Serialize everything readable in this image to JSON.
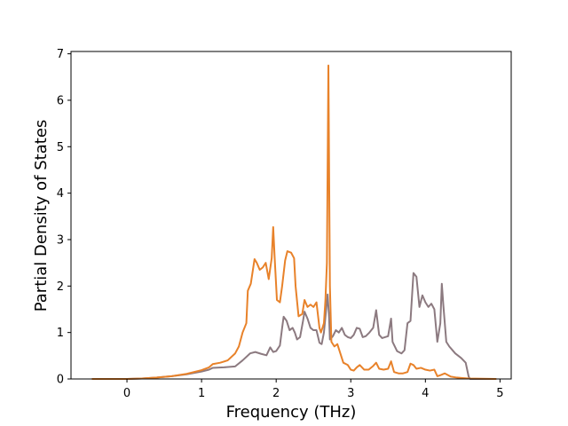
{
  "chart_data": {
    "type": "line",
    "title": "",
    "xlabel": "Frequency (THz)",
    "ylabel": "Partial Density of States",
    "xlim": [
      -0.75,
      5.15
    ],
    "ylim": [
      0,
      7.05
    ],
    "xticks": [
      0,
      1,
      2,
      3,
      4,
      5
    ],
    "yticks": [
      0,
      1,
      2,
      3,
      4,
      5,
      6,
      7
    ],
    "grid": false,
    "legend": "none",
    "series": [
      {
        "color": "#8c7a80",
        "points": [
          [
            -0.47,
            0.0
          ],
          [
            0.0,
            0.0
          ],
          [
            0.2,
            0.01
          ],
          [
            0.4,
            0.03
          ],
          [
            0.6,
            0.06
          ],
          [
            0.8,
            0.1
          ],
          [
            1.0,
            0.16
          ],
          [
            1.1,
            0.2
          ],
          [
            1.15,
            0.24
          ],
          [
            1.3,
            0.25
          ],
          [
            1.45,
            0.27
          ],
          [
            1.55,
            0.4
          ],
          [
            1.65,
            0.55
          ],
          [
            1.72,
            0.58
          ],
          [
            1.8,
            0.54
          ],
          [
            1.87,
            0.51
          ],
          [
            1.92,
            0.68
          ],
          [
            1.96,
            0.58
          ],
          [
            2.0,
            0.6
          ],
          [
            2.05,
            0.72
          ],
          [
            2.08,
            1.1
          ],
          [
            2.1,
            1.34
          ],
          [
            2.14,
            1.25
          ],
          [
            2.18,
            1.05
          ],
          [
            2.22,
            1.1
          ],
          [
            2.25,
            1.0
          ],
          [
            2.28,
            0.85
          ],
          [
            2.32,
            0.9
          ],
          [
            2.36,
            1.25
          ],
          [
            2.38,
            1.45
          ],
          [
            2.42,
            1.3
          ],
          [
            2.46,
            1.1
          ],
          [
            2.5,
            1.05
          ],
          [
            2.54,
            1.05
          ],
          [
            2.58,
            0.78
          ],
          [
            2.61,
            0.75
          ],
          [
            2.64,
            1.0
          ],
          [
            2.67,
            1.5
          ],
          [
            2.69,
            1.82
          ],
          [
            2.71,
            1.3
          ],
          [
            2.72,
            0.85
          ],
          [
            2.76,
            0.92
          ],
          [
            2.8,
            1.05
          ],
          [
            2.84,
            1.0
          ],
          [
            2.88,
            1.1
          ],
          [
            2.92,
            0.95
          ],
          [
            2.96,
            0.9
          ],
          [
            3.0,
            0.88
          ],
          [
            3.04,
            0.95
          ],
          [
            3.08,
            1.1
          ],
          [
            3.12,
            1.08
          ],
          [
            3.16,
            0.9
          ],
          [
            3.2,
            0.92
          ],
          [
            3.25,
            1.0
          ],
          [
            3.3,
            1.1
          ],
          [
            3.34,
            1.48
          ],
          [
            3.38,
            0.95
          ],
          [
            3.42,
            0.88
          ],
          [
            3.5,
            0.92
          ],
          [
            3.54,
            1.3
          ],
          [
            3.56,
            0.8
          ],
          [
            3.62,
            0.6
          ],
          [
            3.68,
            0.55
          ],
          [
            3.72,
            0.62
          ],
          [
            3.76,
            1.2
          ],
          [
            3.8,
            1.25
          ],
          [
            3.84,
            2.28
          ],
          [
            3.88,
            2.2
          ],
          [
            3.92,
            1.55
          ],
          [
            3.96,
            1.8
          ],
          [
            4.0,
            1.65
          ],
          [
            4.04,
            1.55
          ],
          [
            4.08,
            1.62
          ],
          [
            4.12,
            1.5
          ],
          [
            4.16,
            0.8
          ],
          [
            4.2,
            1.2
          ],
          [
            4.22,
            2.05
          ],
          [
            4.24,
            1.6
          ],
          [
            4.28,
            0.8
          ],
          [
            4.32,
            0.7
          ],
          [
            4.4,
            0.55
          ],
          [
            4.48,
            0.45
          ],
          [
            4.54,
            0.35
          ],
          [
            4.58,
            0.05
          ],
          [
            4.6,
            0.0
          ],
          [
            4.95,
            0.0
          ]
        ]
      },
      {
        "color": "#e8822a",
        "points": [
          [
            -0.47,
            0.0
          ],
          [
            0.0,
            0.0
          ],
          [
            0.2,
            0.01
          ],
          [
            0.4,
            0.03
          ],
          [
            0.6,
            0.06
          ],
          [
            0.8,
            0.11
          ],
          [
            1.0,
            0.19
          ],
          [
            1.1,
            0.25
          ],
          [
            1.15,
            0.32
          ],
          [
            1.25,
            0.35
          ],
          [
            1.35,
            0.4
          ],
          [
            1.45,
            0.55
          ],
          [
            1.5,
            0.7
          ],
          [
            1.55,
            1.0
          ],
          [
            1.6,
            1.2
          ],
          [
            1.62,
            1.9
          ],
          [
            1.66,
            2.05
          ],
          [
            1.71,
            2.58
          ],
          [
            1.74,
            2.5
          ],
          [
            1.78,
            2.35
          ],
          [
            1.82,
            2.4
          ],
          [
            1.86,
            2.5
          ],
          [
            1.9,
            2.15
          ],
          [
            1.94,
            2.6
          ],
          [
            1.96,
            3.27
          ],
          [
            1.98,
            2.6
          ],
          [
            2.01,
            1.7
          ],
          [
            2.05,
            1.65
          ],
          [
            2.08,
            2.0
          ],
          [
            2.12,
            2.55
          ],
          [
            2.15,
            2.75
          ],
          [
            2.2,
            2.72
          ],
          [
            2.24,
            2.6
          ],
          [
            2.26,
            2.0
          ],
          [
            2.3,
            1.35
          ],
          [
            2.35,
            1.4
          ],
          [
            2.38,
            1.7
          ],
          [
            2.42,
            1.55
          ],
          [
            2.46,
            1.6
          ],
          [
            2.5,
            1.55
          ],
          [
            2.54,
            1.65
          ],
          [
            2.58,
            1.1
          ],
          [
            2.6,
            1.0
          ],
          [
            2.64,
            1.2
          ],
          [
            2.66,
            1.7
          ],
          [
            2.68,
            2.5
          ],
          [
            2.7,
            6.75
          ],
          [
            2.72,
            2.0
          ],
          [
            2.74,
            0.8
          ],
          [
            2.78,
            0.7
          ],
          [
            2.82,
            0.75
          ],
          [
            2.86,
            0.55
          ],
          [
            2.9,
            0.35
          ],
          [
            2.96,
            0.3
          ],
          [
            3.0,
            0.2
          ],
          [
            3.04,
            0.18
          ],
          [
            3.08,
            0.25
          ],
          [
            3.12,
            0.3
          ],
          [
            3.18,
            0.2
          ],
          [
            3.24,
            0.2
          ],
          [
            3.3,
            0.28
          ],
          [
            3.34,
            0.35
          ],
          [
            3.38,
            0.22
          ],
          [
            3.44,
            0.2
          ],
          [
            3.5,
            0.22
          ],
          [
            3.54,
            0.38
          ],
          [
            3.58,
            0.15
          ],
          [
            3.64,
            0.12
          ],
          [
            3.7,
            0.12
          ],
          [
            3.76,
            0.15
          ],
          [
            3.8,
            0.33
          ],
          [
            3.84,
            0.3
          ],
          [
            3.88,
            0.22
          ],
          [
            3.94,
            0.24
          ],
          [
            4.0,
            0.2
          ],
          [
            4.06,
            0.18
          ],
          [
            4.12,
            0.2
          ],
          [
            4.16,
            0.06
          ],
          [
            4.2,
            0.08
          ],
          [
            4.26,
            0.12
          ],
          [
            4.34,
            0.05
          ],
          [
            4.42,
            0.03
          ],
          [
            4.5,
            0.02
          ],
          [
            4.58,
            0.01
          ],
          [
            4.95,
            0.0
          ]
        ]
      }
    ]
  }
}
